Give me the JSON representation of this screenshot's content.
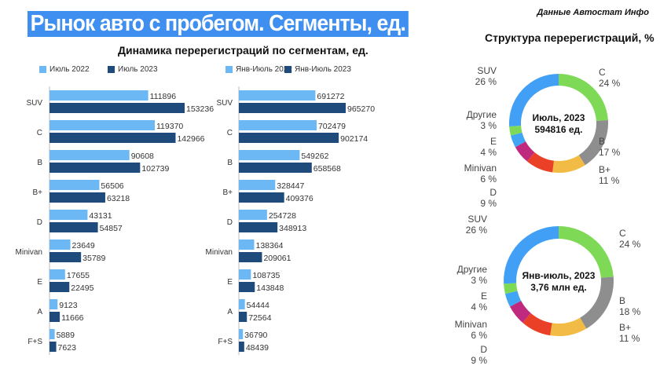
{
  "title": "Рынок авто с пробегом. Сегменты, ед.",
  "source": "Данные Автостат Инфо",
  "colors": {
    "light": "#6bb8f5",
    "dark": "#1f4a7c",
    "title_bg": "#3f8ff0"
  },
  "chart_data": [
    {
      "type": "bar",
      "orientation": "horizontal",
      "title": "Динамика перерегистраций по сегментам, ед.",
      "categories": [
        "SUV",
        "C",
        "B",
        "B+",
        "D",
        "Minivan",
        "E",
        "A",
        "F+S"
      ],
      "series": [
        {
          "name": "Июль 2022",
          "values": [
            111896,
            119370,
            90608,
            56506,
            43131,
            23649,
            17655,
            9123,
            5889
          ]
        },
        {
          "name": "Июль 2023",
          "values": [
            153236,
            142966,
            102739,
            63218,
            54857,
            35789,
            22495,
            11666,
            7623
          ]
        }
      ]
    },
    {
      "type": "bar",
      "orientation": "horizontal",
      "categories": [
        "SUV",
        "C",
        "B",
        "B+",
        "D",
        "Minivan",
        "E",
        "A",
        "F+S"
      ],
      "series": [
        {
          "name": "Янв-Июль 2022",
          "values": [
            691272,
            702479,
            549262,
            328447,
            254728,
            138364,
            108735,
            54444,
            36790
          ]
        },
        {
          "name": "Янв-Июль 2023",
          "values": [
            965270,
            902174,
            658568,
            409376,
            348913,
            209061,
            143848,
            72564,
            48439
          ]
        }
      ]
    },
    {
      "type": "pie",
      "donut": true,
      "title": "Структура перерегистраций, %",
      "center_label": [
        "Июль, 2023",
        "594816 ед."
      ],
      "slices": [
        {
          "label": "C",
          "value": 24,
          "color": "#7ed957"
        },
        {
          "label": "B",
          "value": 17,
          "color": "#8e8e8e"
        },
        {
          "label": "B+",
          "value": 11,
          "color": "#f2bb45"
        },
        {
          "label": "D",
          "value": 9,
          "color": "#ea4027"
        },
        {
          "label": "Minivan",
          "value": 6,
          "color": "#c02a7e"
        },
        {
          "label": "E",
          "value": 4,
          "color": "#41a5f5"
        },
        {
          "label": "Другие",
          "value": 3,
          "color": "#7ed957"
        },
        {
          "label": "SUV",
          "value": 26,
          "color": "#41a0f5"
        }
      ]
    },
    {
      "type": "pie",
      "donut": true,
      "center_label": [
        "Янв-июль, 2023",
        "3,76 млн ед."
      ],
      "slices": [
        {
          "label": "C",
          "value": 24,
          "color": "#7ed957"
        },
        {
          "label": "B",
          "value": 18,
          "color": "#8e8e8e"
        },
        {
          "label": "B+",
          "value": 11,
          "color": "#f2bb45"
        },
        {
          "label": "D",
          "value": 9,
          "color": "#ea4027"
        },
        {
          "label": "Minivan",
          "value": 6,
          "color": "#c02a7e"
        },
        {
          "label": "E",
          "value": 4,
          "color": "#41a5f5"
        },
        {
          "label": "Другие",
          "value": 3,
          "color": "#7ed957"
        },
        {
          "label": "SUV",
          "value": 26,
          "color": "#41a0f5"
        }
      ]
    }
  ]
}
